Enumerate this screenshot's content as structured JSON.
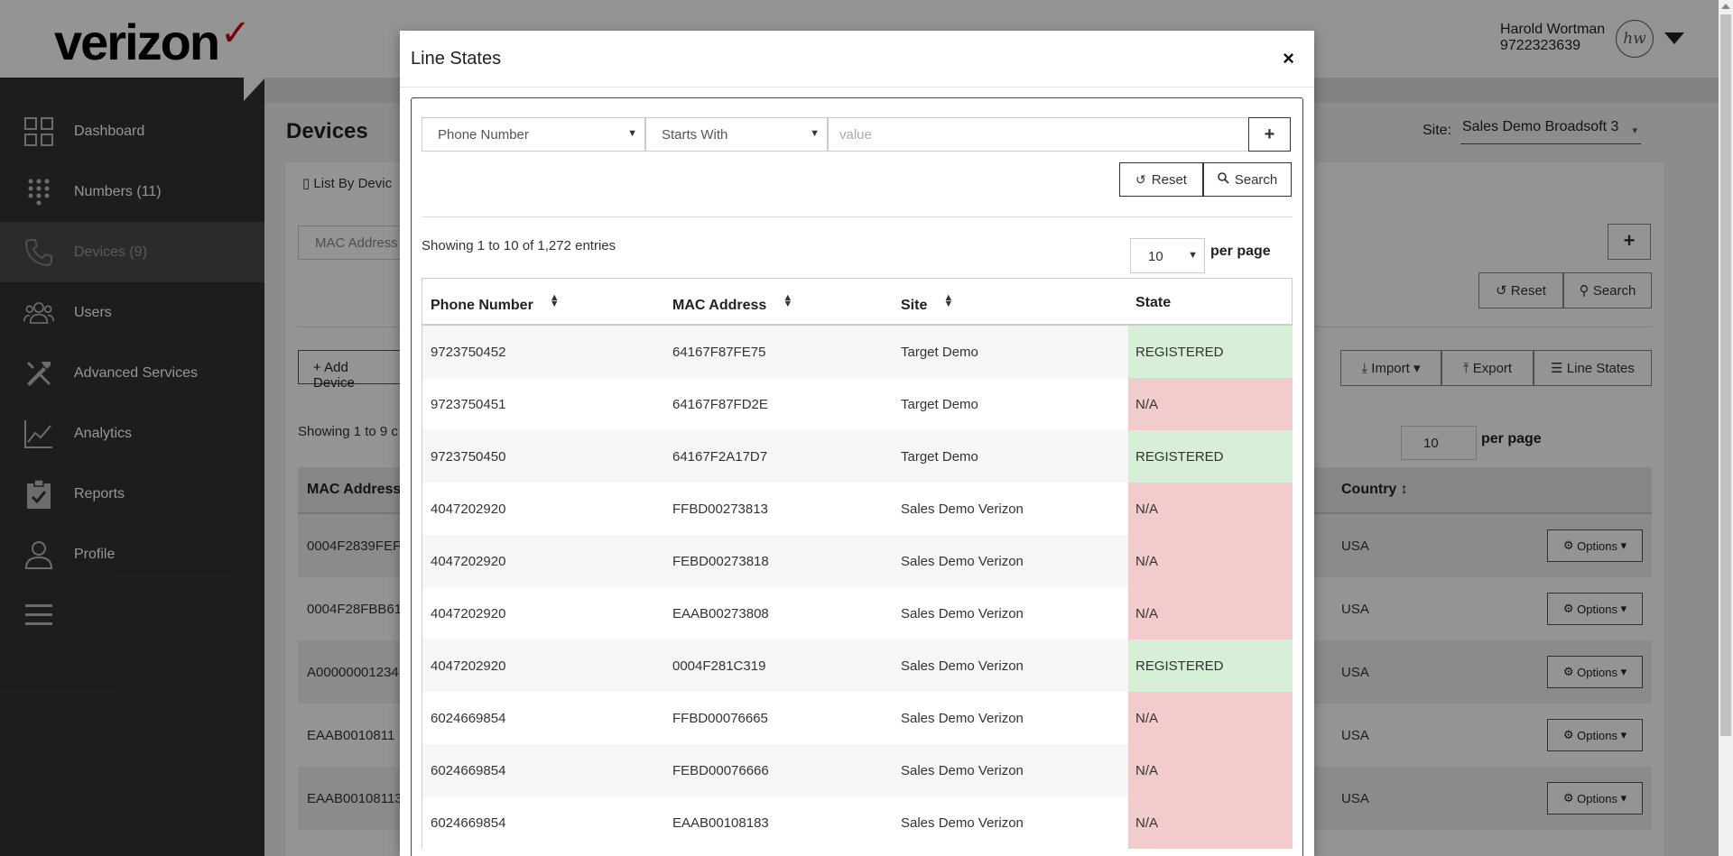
{
  "app": {
    "user_name": "Harold Wortman",
    "user_phone": "9722323639",
    "avatar_initials": "hw"
  },
  "sidebar": {
    "items": [
      {
        "label": "Dashboard",
        "icon": "grid-icon"
      },
      {
        "label": "Numbers (11)",
        "icon": "keypad-icon"
      },
      {
        "label": "Devices (9)",
        "icon": "phone-icon"
      },
      {
        "label": "Users",
        "icon": "users-icon"
      },
      {
        "label": "Advanced Services",
        "icon": "tools-icon"
      },
      {
        "label": "Analytics",
        "icon": "chart-icon"
      },
      {
        "label": "Reports",
        "icon": "clipboard-icon"
      },
      {
        "label": "Profile",
        "icon": "person-icon"
      }
    ]
  },
  "main": {
    "title": "Devices",
    "site_label": "Site:",
    "site_value": "Sales Demo Broadsoft 3",
    "tab_label": "List By Devic",
    "filter_field": "MAC Address",
    "reset_label": "Reset",
    "search_label": "Search",
    "add_label": "Add Device",
    "import_label": "Import",
    "export_label": "Export",
    "line_states_label": "Line States",
    "showing": "Showing 1 to 9 c",
    "per_page_value": "10",
    "per_page_label": "per page",
    "columns": {
      "mac": "MAC Address",
      "country": "Country"
    },
    "rows": [
      {
        "mac": "0004F2839FEF",
        "country": "USA",
        "options": "Options"
      },
      {
        "mac": "0004F28FBB61",
        "country": "USA",
        "options": "Options"
      },
      {
        "mac": "A00000001234",
        "country": "USA",
        "options": "Options"
      },
      {
        "mac": "EAAB0010811",
        "country": "USA",
        "options": "Options"
      },
      {
        "mac": "EAAB00108113",
        "country": "USA",
        "options": "Options"
      }
    ]
  },
  "modal": {
    "title": "Line States",
    "close": "×",
    "filter_field": "Phone Number",
    "filter_operator": "Starts With",
    "value_placeholder": "value",
    "add_label": "+",
    "reset_label": "Reset",
    "search_label": "Search",
    "showing": "Showing 1 to 10 of 1,272 entries",
    "per_page_value": "10",
    "per_page_label": "per page",
    "columns": {
      "phone": "Phone Number",
      "mac": "MAC Address",
      "site": "Site",
      "state": "State"
    },
    "rows": [
      {
        "phone": "9723750452",
        "mac": "64167F87FE75",
        "site": "Target Demo",
        "state": "REGISTERED"
      },
      {
        "phone": "9723750451",
        "mac": "64167F87FD2E",
        "site": "Target Demo",
        "state": "N/A"
      },
      {
        "phone": "9723750450",
        "mac": "64167F2A17D7",
        "site": "Target Demo",
        "state": "REGISTERED"
      },
      {
        "phone": "4047202920",
        "mac": "FFBD00273813",
        "site": "Sales Demo Verizon",
        "state": "N/A"
      },
      {
        "phone": "4047202920",
        "mac": "FEBD00273818",
        "site": "Sales Demo Verizon",
        "state": "N/A"
      },
      {
        "phone": "4047202920",
        "mac": "EAAB00273808",
        "site": "Sales Demo Verizon",
        "state": "N/A"
      },
      {
        "phone": "4047202920",
        "mac": "0004F281C319",
        "site": "Sales Demo Verizon",
        "state": "REGISTERED"
      },
      {
        "phone": "6024669854",
        "mac": "FFBD00076665",
        "site": "Sales Demo Verizon",
        "state": "N/A"
      },
      {
        "phone": "6024669854",
        "mac": "FEBD00076666",
        "site": "Sales Demo Verizon",
        "state": "N/A"
      },
      {
        "phone": "6024669854",
        "mac": "EAAB00108183",
        "site": "Sales Demo Verizon",
        "state": "N/A"
      }
    ]
  },
  "colors": {
    "brand_red": "#cd040b",
    "registered_bg": "#d6efd6",
    "na_bg": "#f2cccc",
    "sidebar_bg": "#333333"
  }
}
